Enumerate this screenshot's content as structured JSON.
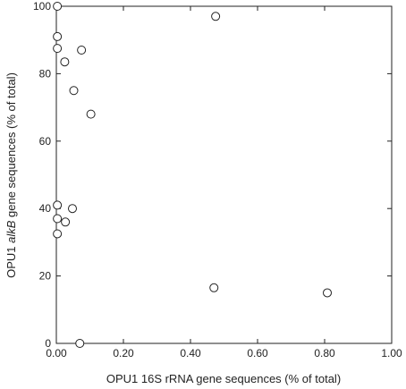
{
  "chart_data": {
    "type": "scatter",
    "title": "",
    "xlabel": "OPU1 16S rRNA gene sequences (% of total)",
    "ylabel_prefix": "OPU1 ",
    "ylabel_italic": "alkB",
    "ylabel_suffix": " gene sequences (% of total)",
    "xlim": [
      0,
      1.0
    ],
    "ylim": [
      0,
      100
    ],
    "xticks": [
      0,
      0.2,
      0.4,
      0.6,
      0.8,
      1.0
    ],
    "xtick_labels": [
      "0.00",
      "0.20",
      "0.40",
      "0.60",
      "0.80",
      "1.00"
    ],
    "yticks": [
      0,
      20,
      40,
      60,
      80,
      100
    ],
    "ytick_labels": [
      "0",
      "20",
      "40",
      "60",
      "80",
      "100"
    ],
    "grid": false,
    "marker": "open-circle",
    "colors": {
      "axis": "#222222",
      "marker_stroke": "#222222",
      "background": "#ffffff"
    },
    "points": [
      {
        "x": 0.003,
        "y": 100
      },
      {
        "x": 0.003,
        "y": 91
      },
      {
        "x": 0.003,
        "y": 87.5
      },
      {
        "x": 0.025,
        "y": 83.5
      },
      {
        "x": 0.075,
        "y": 87
      },
      {
        "x": 0.052,
        "y": 75
      },
      {
        "x": 0.103,
        "y": 68
      },
      {
        "x": 0.475,
        "y": 97
      },
      {
        "x": 0.003,
        "y": 41
      },
      {
        "x": 0.003,
        "y": 37
      },
      {
        "x": 0.048,
        "y": 40
      },
      {
        "x": 0.027,
        "y": 36
      },
      {
        "x": 0.003,
        "y": 32.5
      },
      {
        "x": 0.47,
        "y": 16.5
      },
      {
        "x": 0.808,
        "y": 15
      },
      {
        "x": 0.07,
        "y": 0
      }
    ]
  }
}
